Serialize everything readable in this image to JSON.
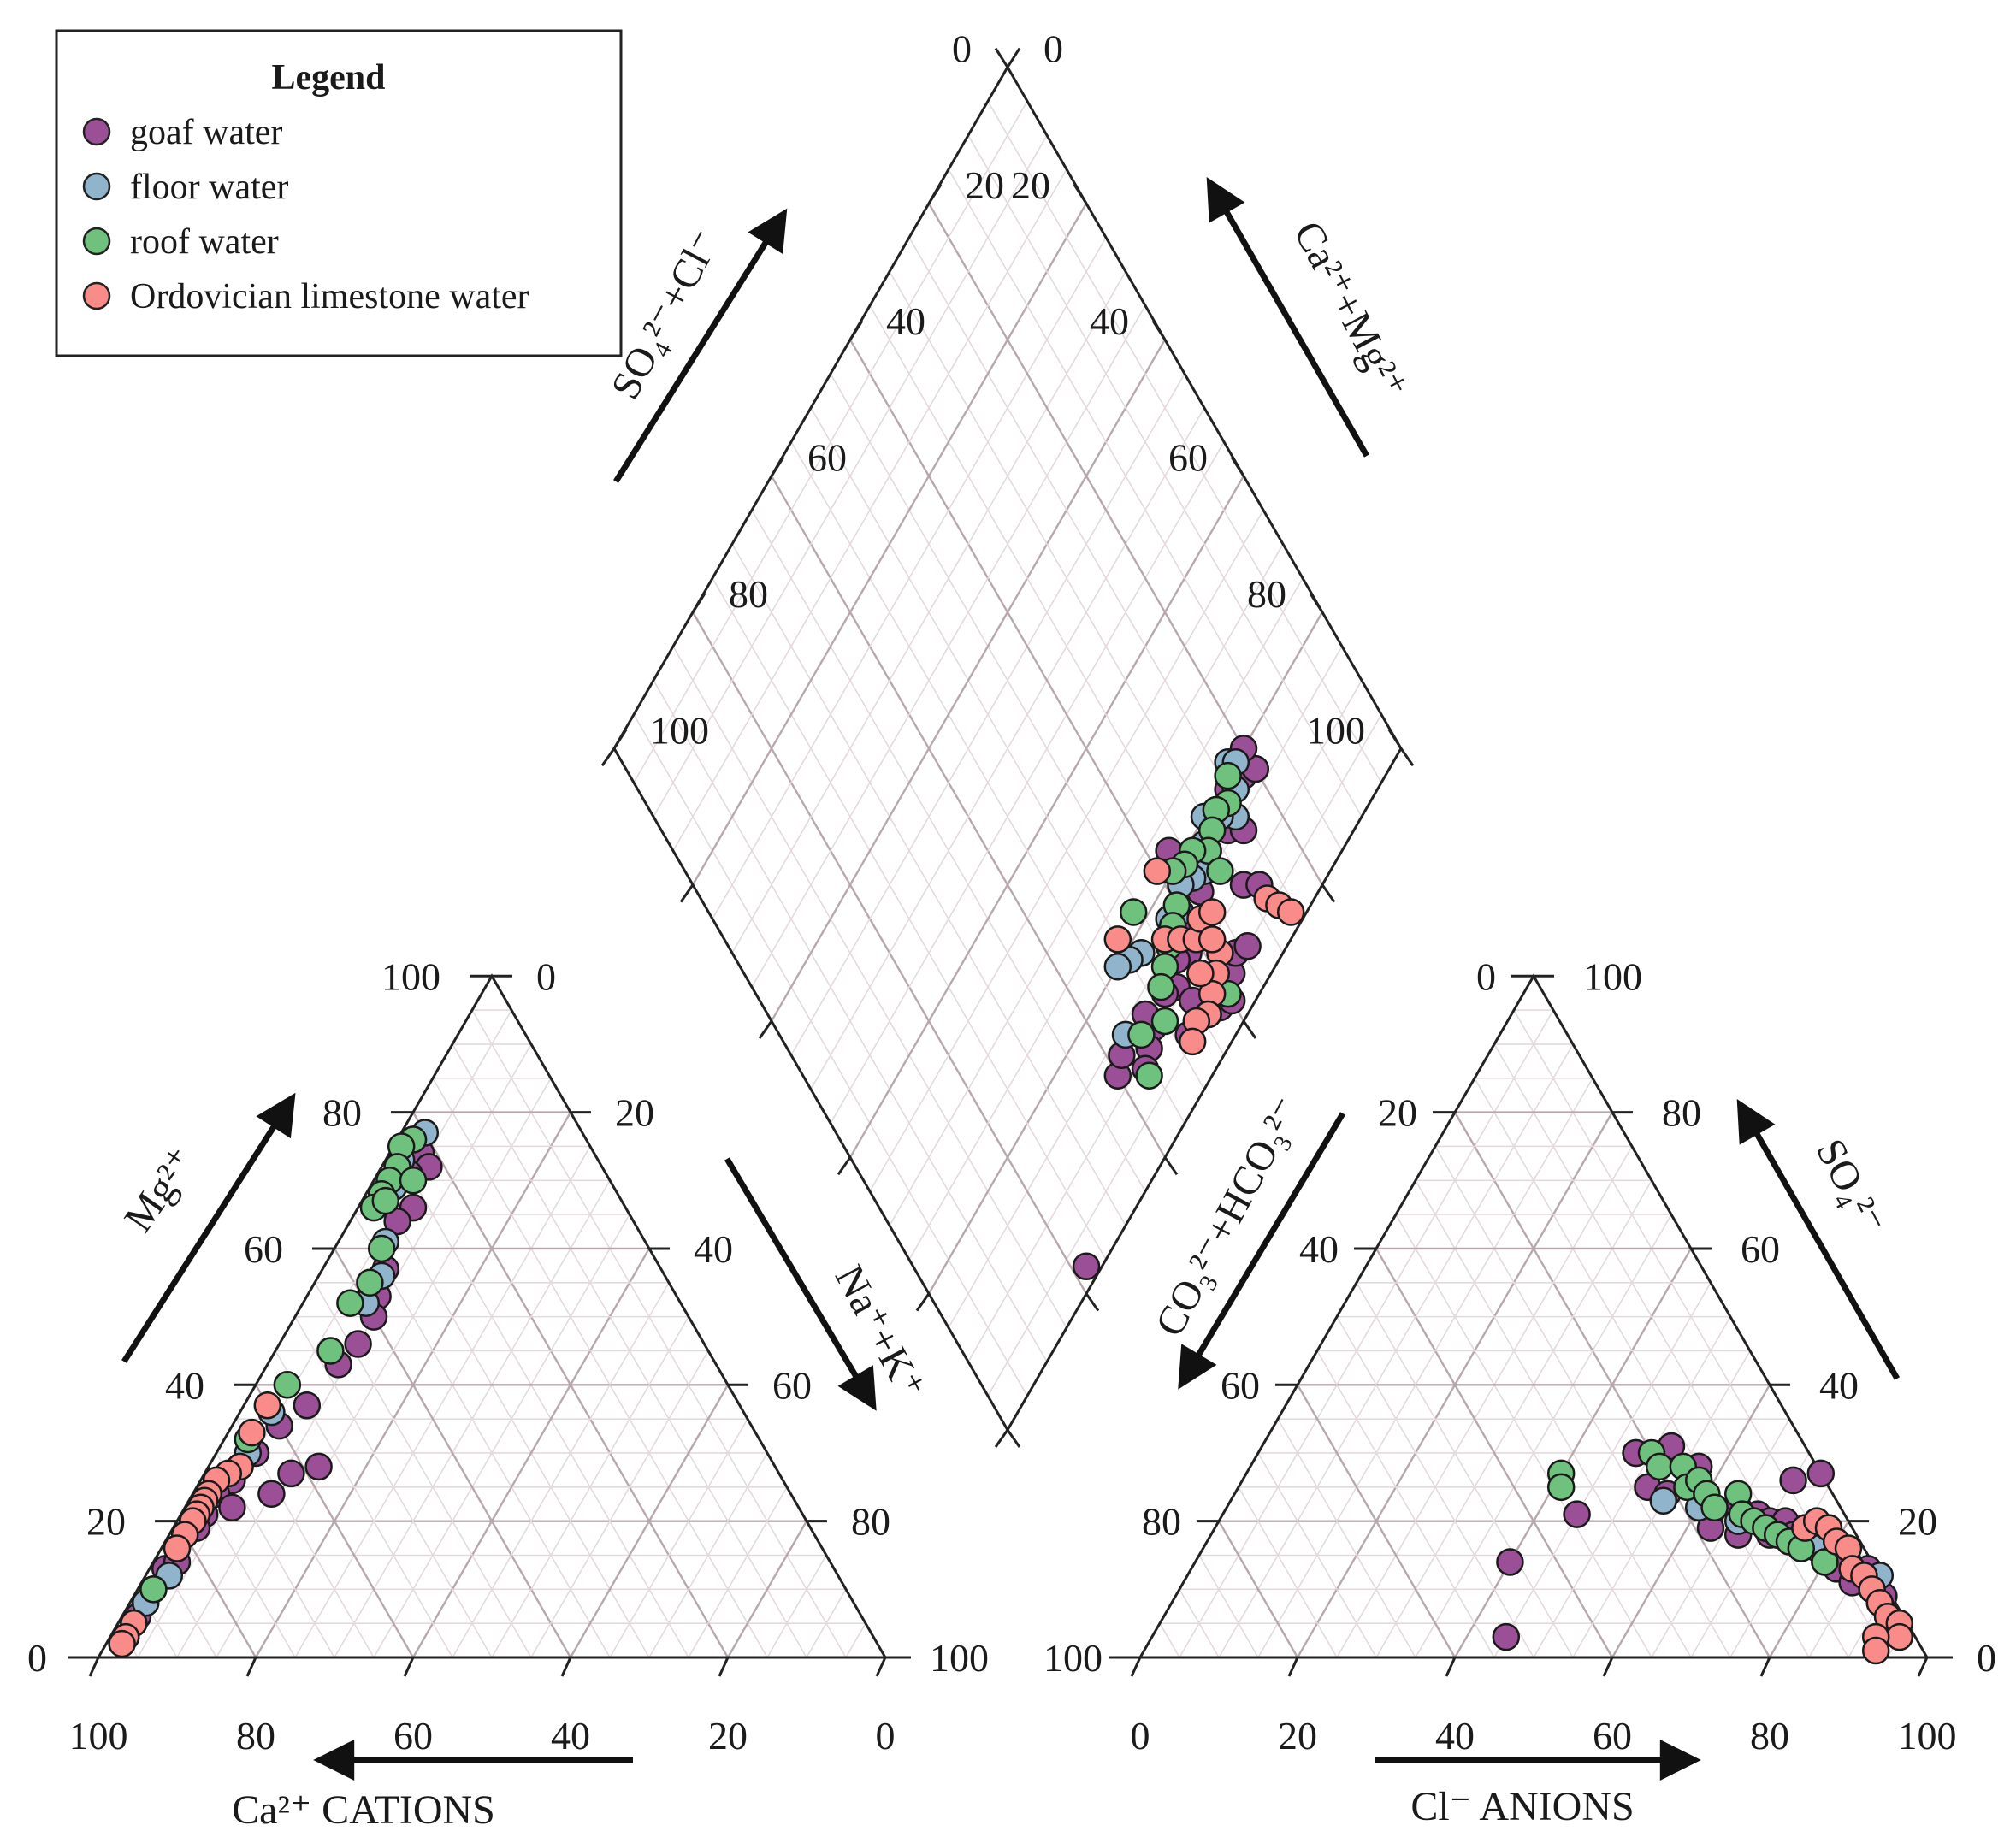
{
  "legend": {
    "title": "Legend",
    "items": [
      {
        "key": "goaf",
        "label": "goaf water",
        "color": "#9b4f96"
      },
      {
        "key": "floor",
        "label": "floor water",
        "color": "#8fb4cc"
      },
      {
        "key": "roof",
        "label": "roof water",
        "color": "#6fc27e"
      },
      {
        "key": "ord",
        "label": "Ordovician limestone water",
        "color": "#f98b88"
      }
    ]
  },
  "axis_labels": {
    "cation_bottom": "Ca²⁺ CATIONS",
    "cation_left": "Mg²⁺",
    "cation_right": "Na⁺+K⁺",
    "anion_bottom": "Cl⁻ ANIONS",
    "anion_left": "CO₃²⁻+HCO₃²⁻",
    "anion_right": "SO₄²⁻",
    "diamond_left": "SO₄²⁻+Cl⁻",
    "diamond_right": "Ca²⁺+Mg²⁺"
  },
  "tick_labels": [
    "0",
    "20",
    "40",
    "60",
    "80",
    "100"
  ],
  "chart_data": {
    "type": "scatter",
    "subtype": "piper-diagram",
    "grid": true,
    "legend_position": "top-left",
    "series": [
      {
        "name": "goaf water",
        "key": "goaf",
        "cation": [
          [
            22,
            74,
            4
          ],
          [
            22,
            72,
            6
          ],
          [
            25,
            71,
            4
          ],
          [
            27,
            66,
            7
          ],
          [
            30,
            64,
            6
          ],
          [
            35,
            57,
            8
          ],
          [
            38,
            53,
            9
          ],
          [
            40,
            50,
            10
          ],
          [
            44,
            46,
            10
          ],
          [
            48,
            43,
            9
          ],
          [
            55,
            37,
            8
          ],
          [
            60,
            34,
            6
          ],
          [
            65,
            30,
            5
          ],
          [
            68,
            28,
            4
          ],
          [
            70,
            26,
            4
          ],
          [
            73,
            24,
            3
          ],
          [
            76,
            21,
            3
          ],
          [
            80,
            18,
            2
          ],
          [
            82,
            16,
            2
          ],
          [
            85,
            13,
            2
          ],
          [
            88,
            10,
            2
          ],
          [
            90,
            8,
            2
          ],
          [
            92,
            6,
            2
          ],
          [
            95,
            3,
            2
          ],
          [
            62,
            27,
            11
          ],
          [
            58,
            28,
            14
          ],
          [
            66,
            24,
            10
          ],
          [
            72,
            22,
            6
          ],
          [
            78,
            19,
            3
          ],
          [
            83,
            14,
            3
          ]
        ],
        "anion": [
          [
            48,
            30,
            22
          ],
          [
            52,
            25,
            23
          ],
          [
            55,
            24,
            21
          ],
          [
            60,
            23,
            17
          ],
          [
            62,
            21,
            17
          ],
          [
            65,
            22,
            13
          ],
          [
            68,
            21,
            11
          ],
          [
            70,
            20,
            10
          ],
          [
            72,
            20,
            8
          ],
          [
            74,
            18,
            8
          ],
          [
            78,
            17,
            5
          ],
          [
            80,
            15,
            5
          ],
          [
            83,
            14,
            3
          ],
          [
            86,
            13,
            1
          ],
          [
            88,
            10,
            2
          ],
          [
            90,
            9,
            1
          ],
          [
            45,
            21,
            34
          ],
          [
            40,
            14,
            46
          ],
          [
            48,
            30,
            22
          ],
          [
            57,
            28,
            15
          ],
          [
            63,
            19,
            18
          ],
          [
            67,
            18,
            15
          ],
          [
            71,
            18,
            11
          ],
          [
            76,
            16,
            8
          ],
          [
            82,
            13,
            5
          ],
          [
            85,
            11,
            4
          ],
          [
            70,
            26,
            4
          ],
          [
            73,
            27,
            0
          ],
          [
            45,
            3,
            52
          ],
          [
            52,
            31,
            17
          ]
        ],
        "diamond": [
          [
            78,
            18
          ],
          [
            80,
            17
          ],
          [
            80,
            20
          ],
          [
            75,
            19
          ],
          [
            70,
            18
          ],
          [
            72,
            16
          ],
          [
            74,
            14
          ],
          [
            68,
            17
          ],
          [
            66,
            16
          ],
          [
            64,
            15
          ],
          [
            60,
            14
          ],
          [
            58,
            12
          ],
          [
            56,
            13
          ],
          [
            54,
            11
          ],
          [
            52,
            12
          ],
          [
            48,
            11
          ],
          [
            46,
            10
          ],
          [
            44,
            9
          ],
          [
            52,
            6
          ],
          [
            56,
            5
          ],
          [
            58,
            4
          ],
          [
            62,
            5
          ],
          [
            64,
            6
          ],
          [
            66,
            5
          ],
          [
            60,
            3
          ],
          [
            55,
            8
          ],
          [
            70,
            10
          ],
          [
            72,
            8
          ],
          [
            48,
            13
          ],
          [
            63,
            22
          ],
          [
            22,
            2
          ],
          [
            40,
            12
          ],
          [
            42,
            13
          ],
          [
            58,
            16
          ]
        ]
      },
      {
        "name": "floor water",
        "key": "floor",
        "cation": [
          [
            20,
            77,
            3
          ],
          [
            22,
            76,
            2
          ],
          [
            25,
            73,
            2
          ],
          [
            28,
            69,
            3
          ],
          [
            33,
            61,
            6
          ],
          [
            36,
            56,
            8
          ],
          [
            40,
            52,
            8
          ],
          [
            85,
            12,
            3
          ],
          [
            88,
            10,
            2
          ],
          [
            90,
            8,
            2
          ],
          [
            93,
            5,
            2
          ],
          [
            60,
            36,
            4
          ],
          [
            66,
            30,
            4
          ]
        ],
        "anion": [
          [
            62,
            22,
            16
          ],
          [
            66,
            20,
            14
          ],
          [
            70,
            19,
            11
          ],
          [
            74,
            17,
            9
          ],
          [
            78,
            16,
            6
          ],
          [
            88,
            12,
            0
          ],
          [
            90,
            8,
            2
          ],
          [
            55,
            23,
            22
          ],
          [
            60,
            22,
            18
          ],
          [
            72,
            18,
            10
          ],
          [
            80,
            14,
            6
          ]
        ],
        "diamond": [
          [
            77,
            21
          ],
          [
            78,
            20
          ],
          [
            76,
            18
          ],
          [
            74,
            16
          ],
          [
            72,
            18
          ],
          [
            70,
            20
          ],
          [
            68,
            18
          ],
          [
            66,
            16
          ],
          [
            64,
            17
          ],
          [
            62,
            18
          ],
          [
            60,
            16
          ],
          [
            58,
            17
          ],
          [
            52,
            18
          ],
          [
            50,
            19
          ],
          [
            48,
            20
          ],
          [
            44,
            14
          ]
        ]
      },
      {
        "name": "roof water",
        "key": "roof",
        "cation": [
          [
            22,
            76,
            2
          ],
          [
            24,
            75,
            1
          ],
          [
            26,
            72,
            2
          ],
          [
            28,
            70,
            2
          ],
          [
            30,
            68,
            2
          ],
          [
            32,
            66,
            2
          ],
          [
            34,
            60,
            6
          ],
          [
            38,
            55,
            7
          ],
          [
            42,
            52,
            6
          ],
          [
            48,
            45,
            7
          ],
          [
            56,
            40,
            4
          ],
          [
            65,
            32,
            3
          ],
          [
            78,
            20,
            2
          ],
          [
            82,
            16,
            2
          ],
          [
            88,
            10,
            2
          ],
          [
            25,
            70,
            5
          ],
          [
            30,
            67,
            3
          ]
        ],
        "anion": [
          [
            40,
            27,
            33
          ],
          [
            41,
            25,
            34
          ],
          [
            50,
            30,
            20
          ],
          [
            52,
            28,
            20
          ],
          [
            55,
            28,
            17
          ],
          [
            57,
            25,
            18
          ],
          [
            58,
            26,
            16
          ],
          [
            60,
            24,
            16
          ],
          [
            62,
            22,
            16
          ],
          [
            64,
            24,
            12
          ],
          [
            66,
            21,
            13
          ],
          [
            68,
            20,
            12
          ],
          [
            70,
            19,
            11
          ],
          [
            72,
            18,
            10
          ],
          [
            74,
            17,
            9
          ],
          [
            76,
            16,
            8
          ],
          [
            80,
            14,
            6
          ],
          [
            88,
            10,
            2
          ]
        ],
        "diamond": [
          [
            76,
            20
          ],
          [
            74,
            18
          ],
          [
            72,
            19
          ],
          [
            70,
            18
          ],
          [
            68,
            17
          ],
          [
            66,
            19
          ],
          [
            64,
            19
          ],
          [
            62,
            20
          ],
          [
            60,
            17
          ],
          [
            58,
            16
          ],
          [
            56,
            15
          ],
          [
            54,
            14
          ],
          [
            52,
            13
          ],
          [
            50,
            10
          ],
          [
            46,
            12
          ],
          [
            44,
            8
          ],
          [
            54,
            22
          ],
          [
            58,
            9
          ],
          [
            56,
            5
          ],
          [
            60,
            4
          ],
          [
            68,
            14
          ]
        ]
      },
      {
        "name": "Ordovician limestone water",
        "key": "ord",
        "cation": [
          [
            60,
            37,
            3
          ],
          [
            64,
            33,
            3
          ],
          [
            68,
            28,
            4
          ],
          [
            70,
            27,
            3
          ],
          [
            72,
            26,
            2
          ],
          [
            74,
            24,
            2
          ],
          [
            75,
            23,
            2
          ],
          [
            76,
            22,
            2
          ],
          [
            77,
            21,
            2
          ],
          [
            78,
            20,
            2
          ],
          [
            80,
            18,
            2
          ],
          [
            82,
            16,
            2
          ],
          [
            93,
            5,
            2
          ],
          [
            95,
            3,
            2
          ],
          [
            96,
            2,
            2
          ]
        ],
        "anion": [
          [
            75,
            19,
            6
          ],
          [
            76,
            20,
            4
          ],
          [
            78,
            19,
            3
          ],
          [
            80,
            17,
            3
          ],
          [
            82,
            16,
            2
          ],
          [
            84,
            13,
            3
          ],
          [
            86,
            12,
            2
          ],
          [
            88,
            10,
            2
          ],
          [
            90,
            8,
            2
          ],
          [
            92,
            6,
            2
          ],
          [
            94,
            5,
            1
          ],
          [
            95,
            3,
            2
          ],
          [
            92,
            3,
            5
          ],
          [
            93,
            1,
            6
          ]
        ],
        "diamond": [
          [
            56,
            16
          ],
          [
            58,
            14
          ],
          [
            60,
            12
          ],
          [
            62,
            13
          ],
          [
            64,
            12
          ],
          [
            62,
            8
          ],
          [
            60,
            7
          ],
          [
            58,
            6
          ],
          [
            56,
            5
          ],
          [
            54,
            6
          ],
          [
            52,
            5
          ],
          [
            58,
            9
          ],
          [
            62,
            10
          ],
          [
            50,
            22
          ],
          [
            60,
            22
          ],
          [
            72,
            6
          ],
          [
            73,
            4
          ],
          [
            74,
            2
          ]
        ]
      }
    ]
  }
}
